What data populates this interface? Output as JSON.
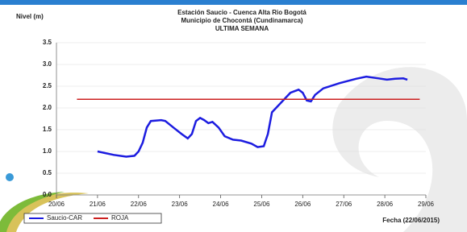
{
  "chart_data": {
    "type": "line",
    "title": "Estación Saucio - Cuenca Alta  Rio Bogotá",
    "subtitle": "Municipio de Chocontá (Cundinamarca)",
    "subtitle2": "ULTIMA SEMANA",
    "y_label": "Nivel (m)",
    "x_label": "Fecha (22/06/2015)",
    "xlim": [
      20,
      29
    ],
    "xticks": [
      {
        "value": 20,
        "label": "20/06"
      },
      {
        "value": 21,
        "label": "21/06"
      },
      {
        "value": 22,
        "label": "22/06"
      },
      {
        "value": 23,
        "label": "23/06"
      },
      {
        "value": 24,
        "label": "24/06"
      },
      {
        "value": 25,
        "label": "25/06"
      },
      {
        "value": 26,
        "label": "26/06"
      },
      {
        "value": 27,
        "label": "27/06"
      },
      {
        "value": 28,
        "label": "28/06"
      },
      {
        "value": 29,
        "label": "29/06"
      }
    ],
    "ylim": [
      0,
      3.5
    ],
    "yticks": [
      {
        "value": 0,
        "label": "0.0"
      },
      0.5,
      {
        "value": 1,
        "label": "1.0"
      },
      1.5,
      {
        "value": 2,
        "label": "2.0"
      },
      2.5,
      {
        "value": 3,
        "label": "3.0"
      },
      3.5
    ],
    "grid": true,
    "series": [
      {
        "name": "Saucio-CAR",
        "color": "#1c1ce0",
        "x": [
          21.0,
          21.4,
          21.7,
          21.9,
          22.0,
          22.1,
          22.2,
          22.3,
          22.55,
          22.65,
          22.85,
          23.05,
          23.2,
          23.3,
          23.4,
          23.5,
          23.6,
          23.7,
          23.8,
          23.95,
          24.1,
          24.3,
          24.5,
          24.75,
          24.9,
          25.05,
          25.15,
          25.25,
          25.5,
          25.7,
          25.9,
          26.0,
          26.1,
          26.2,
          26.3,
          26.5,
          26.9,
          27.3,
          27.55,
          27.85,
          28.05,
          28.25,
          28.45,
          28.55
        ],
        "values": [
          1.0,
          0.92,
          0.88,
          0.9,
          1.0,
          1.2,
          1.55,
          1.7,
          1.72,
          1.7,
          1.55,
          1.4,
          1.3,
          1.4,
          1.7,
          1.77,
          1.72,
          1.65,
          1.68,
          1.55,
          1.35,
          1.27,
          1.25,
          1.18,
          1.1,
          1.12,
          1.4,
          1.9,
          2.15,
          2.35,
          2.42,
          2.35,
          2.17,
          2.15,
          2.3,
          2.45,
          2.57,
          2.67,
          2.72,
          2.68,
          2.65,
          2.67,
          2.68,
          2.65
        ]
      },
      {
        "name": "ROJA",
        "color": "#cc2020",
        "x": [
          20.5,
          28.85
        ],
        "values": [
          2.2,
          2.2
        ]
      }
    ]
  }
}
